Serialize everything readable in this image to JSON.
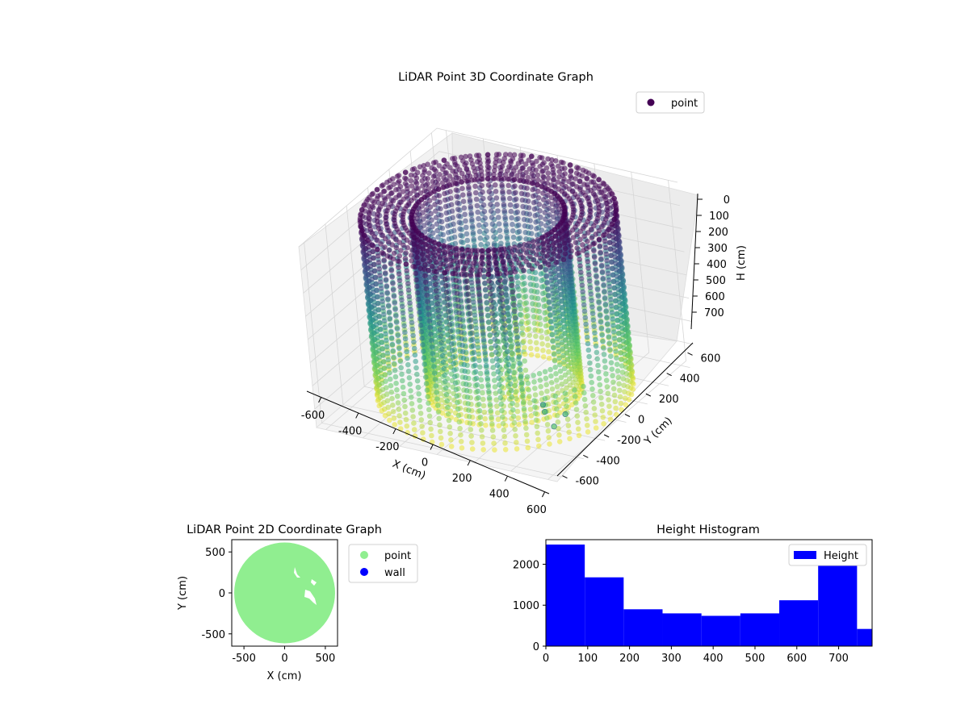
{
  "figure": {
    "background": "#ffffff"
  },
  "chart_data": [
    {
      "type": "scatter",
      "projection": "3d",
      "title": "LiDAR Point 3D Coordinate Graph",
      "xlabel": "X (cm)",
      "ylabel": "Y (cm)",
      "zlabel": "H (cm)",
      "xticks": [
        -600,
        -400,
        -200,
        0,
        200,
        400,
        600
      ],
      "yticks": [
        -600,
        -400,
        -200,
        0,
        200,
        400,
        600
      ],
      "zticks": [
        0,
        100,
        200,
        300,
        400,
        500,
        600,
        700
      ],
      "xlim": [
        -650,
        650
      ],
      "ylim": [
        -650,
        650
      ],
      "zlim": [
        780,
        0
      ],
      "z_axis_inverted": true,
      "grid": true,
      "colormap": "viridis",
      "legend": {
        "location": "top-right",
        "entries": [
          {
            "label": "point",
            "color": "#440154"
          }
        ]
      },
      "series": [
        {
          "name": "point",
          "shape": "hollow cylindrical shell (ring wall) of LiDAR returns",
          "outer_radius": 600,
          "inner_radius": 360,
          "height_range": [
            0,
            780
          ],
          "outliers": [
            [
              600,
              -620,
              500
            ],
            [
              620,
              -660,
              450
            ],
            [
              650,
              -630,
              550
            ],
            [
              700,
              -600,
              500
            ]
          ]
        }
      ]
    },
    {
      "type": "scatter",
      "title": "LiDAR Point 2D Coordinate Graph",
      "xlabel": "X (cm)",
      "ylabel": "Y (cm)",
      "xticks": [
        -500,
        0,
        500
      ],
      "yticks": [
        -500,
        0,
        500
      ],
      "xlim": [
        -650,
        650
      ],
      "ylim": [
        -650,
        650
      ],
      "legend": {
        "location": "outside-right",
        "entries": [
          {
            "label": "point",
            "color": "#90ee90"
          },
          {
            "label": "wall",
            "color": "#0000ff"
          }
        ]
      },
      "series": [
        {
          "name": "point",
          "color": "#90ee90",
          "shape": "filled disc of points",
          "radius": 620
        },
        {
          "name": "wall",
          "color": "#0000ff",
          "values": []
        }
      ]
    },
    {
      "type": "bar",
      "subtype": "histogram",
      "title": "Height Histogram",
      "xticks": [
        0,
        100,
        200,
        300,
        400,
        500,
        600,
        700
      ],
      "yticks": [
        0,
        1000,
        2000
      ],
      "xlim": [
        0,
        780
      ],
      "ylim": [
        0,
        2600
      ],
      "legend": {
        "location": "top-right",
        "entries": [
          {
            "label": "Height",
            "color": "#0000ff"
          }
        ]
      },
      "series": [
        {
          "name": "Height",
          "color": "#0000ff",
          "bin_edges": [
            0,
            93,
            186,
            279,
            372,
            465,
            558,
            651,
            744,
            780
          ],
          "values": [
            2480,
            1680,
            900,
            800,
            740,
            800,
            1120,
            2000,
            420
          ]
        }
      ]
    }
  ]
}
